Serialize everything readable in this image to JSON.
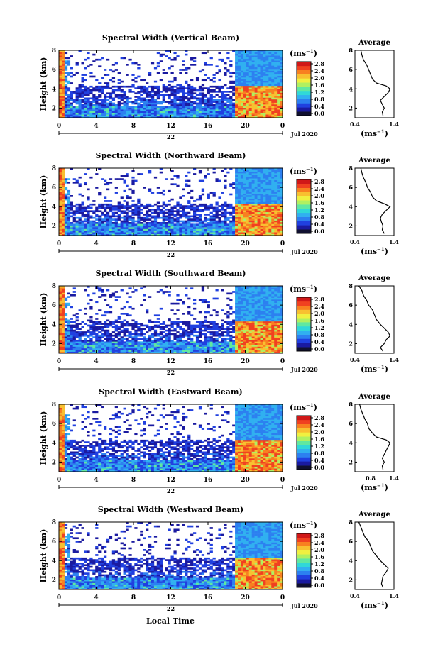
{
  "figure": {
    "xlabel_bottom": "Local Time",
    "date_label": "Jul 2020",
    "day_label": "22",
    "colorbar_unit": "(ms",
    "colorbar_unit_exp": "−1",
    "colorbar_unit_close": ")",
    "avg_title": "Average",
    "avg_xlabel": "(ms",
    "avg_xlabel_exp": "−1",
    "avg_xlabel_close": ")",
    "ylabel": "Height (km)"
  },
  "colorbar": {
    "ticks": [
      "0.0",
      "0.4",
      "0.8",
      "1.2",
      "1.6",
      "2.0",
      "2.4",
      "2.8"
    ],
    "colors": [
      "#101030",
      "#1a1aa0",
      "#2040e0",
      "#2c80f0",
      "#30b0f0",
      "#30d8d8",
      "#60e8a0",
      "#b0f060",
      "#f0f040",
      "#f8c030",
      "#f88020",
      "#f04020",
      "#d01818"
    ]
  },
  "chart_data": [
    {
      "type": "heatmap",
      "title": "Spectral Width (Vertical Beam)",
      "x_ticks": [
        "0",
        "4",
        "8",
        "12",
        "16",
        "20",
        "0"
      ],
      "xlim": [
        0,
        24
      ],
      "y_ticks": [
        "2",
        "4",
        "6",
        "8"
      ],
      "ylim": [
        1,
        8
      ],
      "avg": {
        "title": "Average",
        "x_ticks": [
          "0.4",
          "1.4"
        ],
        "xlim": [
          0.4,
          1.4
        ],
        "y_ticks": [
          "2",
          "4",
          "6",
          "8"
        ],
        "ylim": [
          1,
          8
        ],
        "profile": [
          [
            1.12,
            1.2
          ],
          [
            1.1,
            1.6
          ],
          [
            1.15,
            2.0
          ],
          [
            1.1,
            2.4
          ],
          [
            1.05,
            2.8
          ],
          [
            1.15,
            3.2
          ],
          [
            1.25,
            3.6
          ],
          [
            1.3,
            4.0
          ],
          [
            1.2,
            4.3
          ],
          [
            0.95,
            4.6
          ],
          [
            0.85,
            5.0
          ],
          [
            0.8,
            5.5
          ],
          [
            0.75,
            6.0
          ],
          [
            0.7,
            6.5
          ],
          [
            0.62,
            7.0
          ],
          [
            0.58,
            7.5
          ],
          [
            0.55,
            8.0
          ]
        ]
      }
    },
    {
      "type": "heatmap",
      "title": "Spectral Width (Northward Beam)",
      "x_ticks": [
        "0",
        "4",
        "8",
        "12",
        "16",
        "20",
        "0"
      ],
      "xlim": [
        0,
        24
      ],
      "y_ticks": [
        "2",
        "4",
        "6",
        "8"
      ],
      "ylim": [
        1,
        8
      ],
      "avg": {
        "title": "Average",
        "x_ticks": [
          "0.4",
          "1.4"
        ],
        "xlim": [
          0.4,
          1.4
        ],
        "y_ticks": [
          "2",
          "4",
          "6",
          "8"
        ],
        "ylim": [
          1,
          8
        ],
        "profile": [
          [
            1.15,
            1.2
          ],
          [
            1.1,
            1.6
          ],
          [
            1.12,
            2.0
          ],
          [
            1.08,
            2.4
          ],
          [
            1.05,
            2.8
          ],
          [
            1.1,
            3.2
          ],
          [
            1.2,
            3.6
          ],
          [
            1.3,
            4.0
          ],
          [
            1.15,
            4.3
          ],
          [
            0.95,
            4.6
          ],
          [
            0.85,
            5.0
          ],
          [
            0.8,
            5.5
          ],
          [
            0.72,
            6.0
          ],
          [
            0.68,
            6.5
          ],
          [
            0.62,
            7.0
          ],
          [
            0.58,
            7.5
          ],
          [
            0.55,
            8.0
          ]
        ]
      }
    },
    {
      "type": "heatmap",
      "title": "Spectral Width (Southward Beam)",
      "x_ticks": [
        "0",
        "4",
        "8",
        "12",
        "16",
        "20",
        "0"
      ],
      "xlim": [
        0,
        24
      ],
      "y_ticks": [
        "2",
        "4",
        "6",
        "8"
      ],
      "ylim": [
        1,
        8
      ],
      "avg": {
        "title": "Average",
        "x_ticks": [
          "0.4",
          "1.4"
        ],
        "xlim": [
          0.4,
          1.4
        ],
        "y_ticks": [
          "2",
          "4",
          "6",
          "8"
        ],
        "ylim": [
          1,
          8
        ],
        "profile": [
          [
            1.12,
            1.2
          ],
          [
            1.05,
            1.6
          ],
          [
            1.15,
            2.0
          ],
          [
            1.2,
            2.4
          ],
          [
            1.3,
            2.8
          ],
          [
            1.25,
            3.2
          ],
          [
            1.15,
            3.6
          ],
          [
            1.05,
            4.0
          ],
          [
            0.95,
            4.5
          ],
          [
            0.9,
            5.0
          ],
          [
            0.85,
            5.5
          ],
          [
            0.75,
            6.0
          ],
          [
            0.7,
            6.5
          ],
          [
            0.62,
            7.0
          ],
          [
            0.58,
            7.5
          ],
          [
            0.5,
            8.0
          ]
        ]
      }
    },
    {
      "type": "heatmap",
      "title": "Spectral Width (Eastward Beam)",
      "x_ticks": [
        "0",
        "4",
        "8",
        "12",
        "16",
        "20",
        "0"
      ],
      "xlim": [
        0,
        24
      ],
      "y_ticks": [
        "2",
        "4",
        "6",
        "8"
      ],
      "ylim": [
        1,
        8
      ],
      "avg": {
        "title": "Average",
        "x_ticks": [
          "0.8",
          "1.4"
        ],
        "xlim": [
          0.4,
          1.4
        ],
        "y_ticks": [
          "2",
          "4",
          "6",
          "8"
        ],
        "ylim": [
          1,
          8
        ],
        "profile": [
          [
            1.12,
            1.2
          ],
          [
            1.1,
            1.6
          ],
          [
            1.15,
            2.0
          ],
          [
            1.1,
            2.4
          ],
          [
            1.15,
            2.8
          ],
          [
            1.2,
            3.2
          ],
          [
            1.25,
            3.6
          ],
          [
            1.3,
            4.0
          ],
          [
            1.2,
            4.3
          ],
          [
            0.95,
            4.6
          ],
          [
            0.85,
            5.0
          ],
          [
            0.75,
            5.5
          ],
          [
            0.72,
            6.0
          ],
          [
            0.65,
            6.5
          ],
          [
            0.6,
            7.0
          ],
          [
            0.55,
            7.5
          ],
          [
            0.52,
            8.0
          ]
        ]
      }
    },
    {
      "type": "heatmap",
      "title": "Spectral Width (Westward Beam)",
      "x_ticks": [
        "0",
        "4",
        "8",
        "12",
        "16",
        "20",
        "0"
      ],
      "xlim": [
        0,
        24
      ],
      "y_ticks": [
        "2",
        "4",
        "6",
        "8"
      ],
      "ylim": [
        1,
        8
      ],
      "avg": {
        "title": "Average",
        "x_ticks": [
          "0.4",
          "1.4"
        ],
        "xlim": [
          0.4,
          1.4
        ],
        "y_ticks": [
          "2",
          "4",
          "6",
          "8"
        ],
        "ylim": [
          1,
          8
        ],
        "profile": [
          [
            1.12,
            1.2
          ],
          [
            1.08,
            1.6
          ],
          [
            1.1,
            2.0
          ],
          [
            1.12,
            2.4
          ],
          [
            1.2,
            2.8
          ],
          [
            1.25,
            3.2
          ],
          [
            1.15,
            3.6
          ],
          [
            1.05,
            4.0
          ],
          [
            0.95,
            4.5
          ],
          [
            0.85,
            5.0
          ],
          [
            0.8,
            5.5
          ],
          [
            0.75,
            6.0
          ],
          [
            0.65,
            6.5
          ],
          [
            0.6,
            7.0
          ],
          [
            0.55,
            7.5
          ],
          [
            0.5,
            8.0
          ]
        ]
      }
    }
  ]
}
